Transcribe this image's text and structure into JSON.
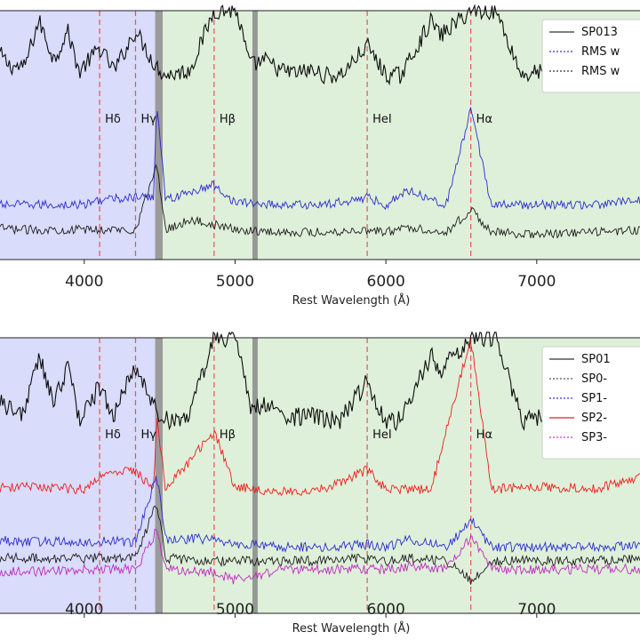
{
  "chart_data": [
    {
      "type": "line",
      "xlabel": "Rest Wavelength (Å)",
      "xlim": [
        3300,
        7720
      ],
      "ylim": [
        0,
        1
      ],
      "x_ticks": [
        4000,
        5000,
        6000,
        7000
      ],
      "x_tick_labels": [
        "4000",
        "5000",
        "6000",
        "7000"
      ],
      "shaded_regions": [
        {
          "range": [
            3300,
            4470
          ],
          "color": "#d9dcfa"
        },
        {
          "range": [
            4520,
            7720
          ],
          "color": "#dff0da"
        }
      ],
      "gray_bands": [
        [
          4470,
          4520
        ],
        [
          5115,
          5150
        ]
      ],
      "line_markers": [
        {
          "x": 4102,
          "label": "Hδ"
        },
        {
          "x": 4340,
          "label": "Hγ"
        },
        {
          "x": 4861,
          "label": "Hβ"
        },
        {
          "x": 5876,
          "label": "HeI"
        },
        {
          "x": 6563,
          "label": "Hα"
        }
      ],
      "legend": {
        "placement": "top-right",
        "entries": [
          {
            "label": "SP013",
            "color": "#333333",
            "style": "solid"
          },
          {
            "label": "RMS w",
            "color": "#3333dd",
            "style": "dotted"
          },
          {
            "label": "RMS w",
            "color": "#333333",
            "style": "dotted"
          }
        ]
      },
      "series": [
        {
          "color": "#000000",
          "level": 0.8,
          "x": [
            3300,
            3400,
            3500,
            3600,
            3700,
            3800,
            3889,
            3970,
            4000,
            4102,
            4200,
            4340,
            4470,
            4540,
            4700,
            4861,
            4959,
            5007,
            5100,
            5200,
            5300,
            5400,
            5500,
            5600,
            5700,
            5876,
            6000,
            6100,
            6300,
            6363,
            6563,
            6717,
            6731,
            6900,
            7065,
            7136,
            7300,
            7500,
            7700
          ],
          "y": [
            0.79,
            0.86,
            0.78,
            0.77,
            0.96,
            0.8,
            0.92,
            0.75,
            0.78,
            0.85,
            0.76,
            0.92,
            0.78,
            0.74,
            0.76,
            1.0,
            1.0,
            1.0,
            0.78,
            0.8,
            0.76,
            0.75,
            0.76,
            0.74,
            0.74,
            0.86,
            0.74,
            0.74,
            0.96,
            0.9,
            1.0,
            1.0,
            1.0,
            0.74,
            0.76,
            0.78,
            0.74,
            0.74,
            0.75
          ]
        },
        {
          "color": "#2222cc",
          "level": 0.23,
          "x": [
            3300,
            3600,
            4000,
            4102,
            4340,
            4460,
            4480,
            4540,
            4861,
            5000,
            5300,
            5600,
            5876,
            6000,
            6150,
            6400,
            6563,
            6700,
            7000,
            7400,
            7700
          ],
          "y": [
            0.22,
            0.22,
            0.22,
            0.24,
            0.25,
            0.25,
            0.64,
            0.24,
            0.3,
            0.23,
            0.22,
            0.22,
            0.25,
            0.22,
            0.28,
            0.22,
            0.6,
            0.22,
            0.22,
            0.22,
            0.24
          ]
        },
        {
          "color": "#111111",
          "level": 0.13,
          "x": [
            3300,
            3600,
            4000,
            4340,
            4480,
            4540,
            4700,
            4861,
            5000,
            5300,
            5600,
            5876,
            6000,
            6150,
            6400,
            6563,
            6700,
            7000,
            7400,
            7700
          ],
          "y": [
            0.13,
            0.12,
            0.12,
            0.12,
            0.38,
            0.12,
            0.16,
            0.14,
            0.12,
            0.11,
            0.11,
            0.12,
            0.11,
            0.13,
            0.11,
            0.2,
            0.11,
            0.1,
            0.11,
            0.12
          ]
        }
      ]
    },
    {
      "type": "line",
      "xlabel": "Rest Wavelength (Å)",
      "xlim": [
        3300,
        7720
      ],
      "ylim": [
        0,
        1
      ],
      "x_ticks": [
        4000,
        5000,
        6000,
        7000
      ],
      "x_tick_labels": [
        "4000",
        "5000",
        "6000",
        "7000"
      ],
      "shaded_regions": [
        {
          "range": [
            3300,
            4470
          ],
          "color": "#d9dcfa"
        },
        {
          "range": [
            4520,
            7720
          ],
          "color": "#dff0da"
        }
      ],
      "gray_bands": [
        [
          4470,
          4520
        ],
        [
          5115,
          5150
        ]
      ],
      "line_markers": [
        {
          "x": 4102,
          "label": "Hδ"
        },
        {
          "x": 4340,
          "label": "Hγ"
        },
        {
          "x": 4861,
          "label": "Hβ"
        },
        {
          "x": 5876,
          "label": "HeI"
        },
        {
          "x": 6563,
          "label": "Hα"
        }
      ],
      "legend": {
        "placement": "top-right",
        "entries": [
          {
            "label": "SP01",
            "color": "#333333",
            "style": "solid"
          },
          {
            "label": "SP0-",
            "color": "#555555",
            "style": "dotted"
          },
          {
            "label": "SP1-",
            "color": "#3333dd",
            "style": "dotted"
          },
          {
            "label": "SP2-",
            "color": "#dd2222",
            "style": "solid"
          },
          {
            "label": "SP3-",
            "color": "#cc33cc",
            "style": "dotted"
          }
        ]
      },
      "series": [
        {
          "color": "#000000",
          "level": 0.76,
          "x": [
            3300,
            3400,
            3500,
            3600,
            3700,
            3800,
            3889,
            3970,
            4000,
            4102,
            4200,
            4340,
            4470,
            4540,
            4700,
            4861,
            4959,
            5007,
            5100,
            5200,
            5300,
            5400,
            5500,
            5600,
            5700,
            5876,
            6000,
            6100,
            6300,
            6363,
            6563,
            6717,
            6731,
            6900,
            7065,
            7136,
            7300,
            7500,
            7700
          ],
          "y": [
            0.74,
            0.82,
            0.74,
            0.73,
            0.93,
            0.76,
            0.9,
            0.7,
            0.74,
            0.82,
            0.72,
            0.9,
            0.74,
            0.7,
            0.72,
            1.0,
            1.0,
            1.0,
            0.74,
            0.76,
            0.72,
            0.71,
            0.72,
            0.7,
            0.7,
            0.84,
            0.7,
            0.7,
            0.94,
            0.88,
            1.0,
            1.0,
            1.0,
            0.7,
            0.72,
            0.74,
            0.7,
            0.7,
            0.71
          ]
        },
        {
          "color": "#ee1111",
          "level": 0.46,
          "x": [
            3300,
            3600,
            4000,
            4102,
            4340,
            4460,
            4480,
            4540,
            4861,
            5000,
            5300,
            5600,
            5876,
            6000,
            6300,
            6563,
            6700,
            7000,
            7400,
            7700
          ],
          "y": [
            0.45,
            0.46,
            0.45,
            0.5,
            0.52,
            0.45,
            0.72,
            0.45,
            0.66,
            0.46,
            0.44,
            0.45,
            0.52,
            0.45,
            0.45,
            1.0,
            0.45,
            0.46,
            0.45,
            0.5
          ]
        },
        {
          "color": "#2222cc",
          "level": 0.26,
          "x": [
            3300,
            3600,
            4000,
            4340,
            4480,
            4540,
            4861,
            5000,
            5300,
            5600,
            5876,
            6000,
            6150,
            6400,
            6563,
            6700,
            7000,
            7400,
            7700
          ],
          "y": [
            0.27,
            0.26,
            0.26,
            0.26,
            0.5,
            0.27,
            0.27,
            0.25,
            0.24,
            0.24,
            0.25,
            0.24,
            0.27,
            0.24,
            0.34,
            0.24,
            0.24,
            0.24,
            0.25
          ]
        },
        {
          "color": "#111111",
          "level": 0.2,
          "x": [
            3300,
            3600,
            4000,
            4340,
            4480,
            4540,
            4861,
            5000,
            5300,
            5600,
            5876,
            6000,
            6150,
            6400,
            6563,
            6700,
            7000,
            7400,
            7700
          ],
          "y": [
            0.2,
            0.2,
            0.2,
            0.2,
            0.4,
            0.2,
            0.19,
            0.19,
            0.19,
            0.19,
            0.2,
            0.19,
            0.2,
            0.19,
            0.12,
            0.19,
            0.19,
            0.19,
            0.2
          ]
        },
        {
          "color": "#bb22bb",
          "level": 0.16,
          "x": [
            3300,
            3600,
            4000,
            4340,
            4480,
            4540,
            4861,
            5000,
            5300,
            5600,
            5876,
            6000,
            6150,
            6400,
            6563,
            6700,
            7000,
            7400,
            7700
          ],
          "y": [
            0.15,
            0.15,
            0.16,
            0.16,
            0.3,
            0.16,
            0.15,
            0.12,
            0.16,
            0.16,
            0.16,
            0.16,
            0.17,
            0.16,
            0.28,
            0.16,
            0.16,
            0.16,
            0.16
          ]
        }
      ]
    }
  ]
}
